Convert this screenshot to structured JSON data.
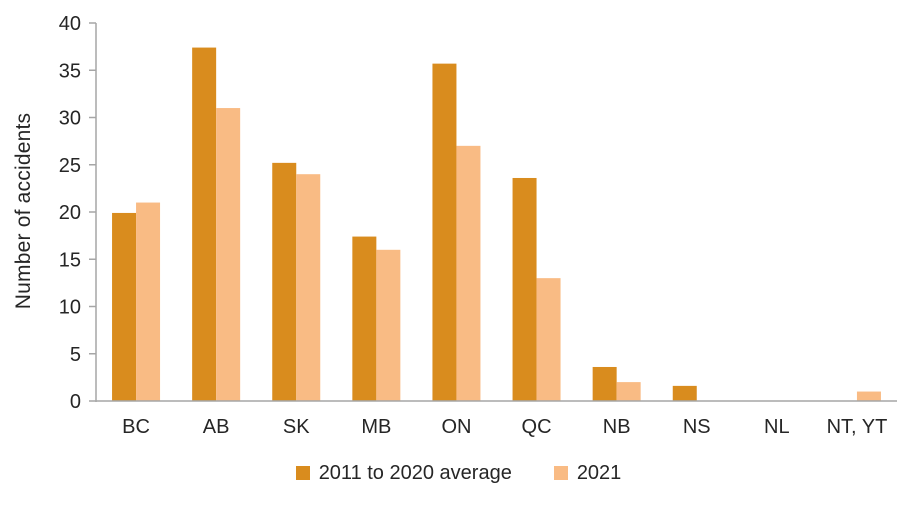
{
  "chart_data": {
    "type": "bar",
    "title": "",
    "xlabel": "",
    "ylabel": "Number of accidents",
    "ylim": [
      0,
      40
    ],
    "yticks": [
      0,
      5,
      10,
      15,
      20,
      25,
      30,
      35,
      40
    ],
    "grid": false,
    "legend_position": "bottom-center",
    "categories": [
      "BC",
      "AB",
      "SK",
      "MB",
      "ON",
      "QC",
      "NB",
      "NS",
      "NL",
      "NT, YT"
    ],
    "series": [
      {
        "name": "2011 to 2020 average",
        "color": "#D98C1E",
        "values": [
          19.9,
          37.4,
          25.2,
          17.4,
          35.7,
          23.6,
          3.6,
          1.6,
          0,
          0
        ]
      },
      {
        "name": "2021",
        "color": "#F9BB84",
        "values": [
          21,
          31,
          24,
          16,
          27,
          13,
          2,
          0,
          0,
          1
        ]
      }
    ]
  },
  "colors": {
    "axis": "#A6A6A6",
    "text": "#262626",
    "background": "#FFFFFF"
  }
}
